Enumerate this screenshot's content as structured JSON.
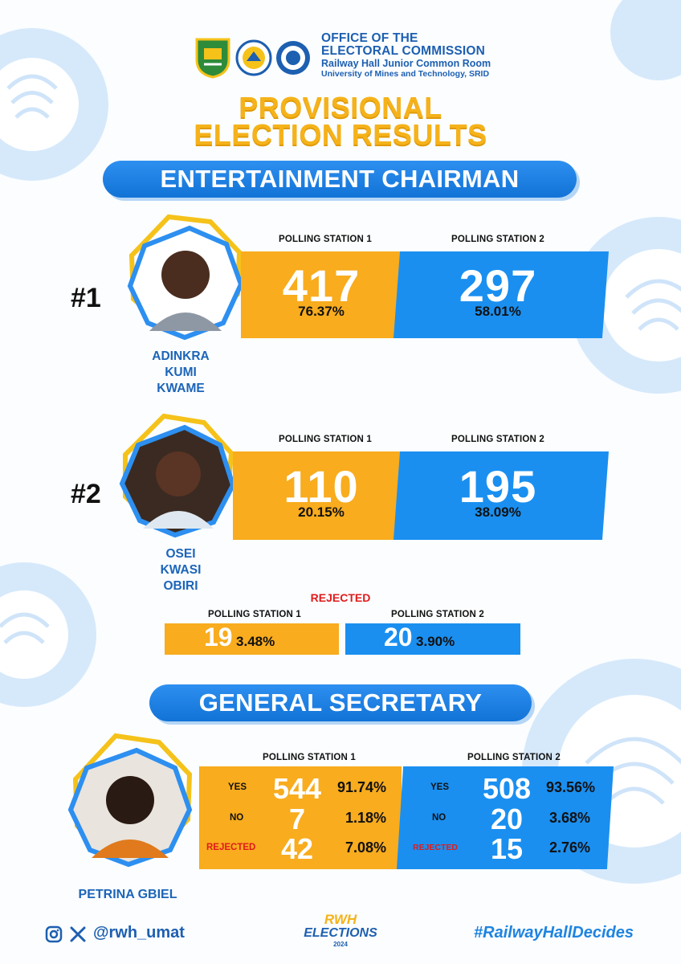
{
  "header": {
    "office_line1": "OFFICE OF THE",
    "office_line2": "ELECTORAL COMMISSION",
    "office_line3": "Railway Hall Junior Common Room",
    "office_line4": "University of Mines and Technology, SRID"
  },
  "title": {
    "line1": "PROVISIONAL",
    "line2": "ELECTION RESULTS"
  },
  "entertainment": {
    "heading": "ENTERTAINMENT CHAIRMAN",
    "candidates": [
      {
        "rank": "#1",
        "name_lines": [
          "ADINKRA",
          "KUMI",
          "KWAME"
        ],
        "station1": {
          "label": "POLLING STATION 1",
          "votes": "417",
          "percent": "76.37%"
        },
        "station2": {
          "label": "POLLING STATION 2",
          "votes": "297",
          "percent": "58.01%"
        }
      },
      {
        "rank": "#2",
        "name_lines": [
          "OSEI",
          "KWASI",
          "OBIRI"
        ],
        "station1": {
          "label": "POLLING STATION 1",
          "votes": "110",
          "percent": "20.15%"
        },
        "station2": {
          "label": "POLLING STATION 2",
          "votes": "195",
          "percent": "38.09%"
        }
      }
    ],
    "rejected": {
      "title": "REJECTED",
      "station1": {
        "label": "POLLING STATION 1",
        "votes": "19",
        "percent": "3.48%"
      },
      "station2": {
        "label": "POLLING STATION 2",
        "votes": "20",
        "percent": "3.90%"
      }
    }
  },
  "secretary": {
    "heading": "GENERAL SECRETARY",
    "candidate_name": "PETRINA GBIEL",
    "station1": {
      "label": "POLLING STATION 1",
      "rows": [
        {
          "label": "YES",
          "votes": "544",
          "percent": "91.74%"
        },
        {
          "label": "NO",
          "votes": "7",
          "percent": "1.18%"
        },
        {
          "label": "REJECTED",
          "votes": "42",
          "percent": "7.08%"
        }
      ]
    },
    "station2": {
      "label": "POLLING STATION 2",
      "rows": [
        {
          "label": "YES",
          "votes": "508",
          "percent": "93.56%"
        },
        {
          "label": "NO",
          "votes": "20",
          "percent": "3.68%"
        },
        {
          "label": "REJECTED",
          "votes": "15",
          "percent": "2.76%"
        }
      ]
    }
  },
  "footer": {
    "handle": "@rwh_umat",
    "hashtag": "#RailwayHallDecides",
    "badge_line1": "RWH",
    "badge_line2": "ELECTIONS",
    "badge_year": "2024"
  },
  "colors": {
    "orange": "#f8ac1e",
    "blue": "#1a8ff0",
    "navy": "#1d5fb0",
    "yellow": "#f5b21a",
    "red": "#e11b1b"
  },
  "icons": [
    "instagram-icon",
    "x-icon",
    "hall-crest-icon",
    "jcr-logo-icon",
    "electoral-seal-icon",
    "fingerprint-icon"
  ]
}
